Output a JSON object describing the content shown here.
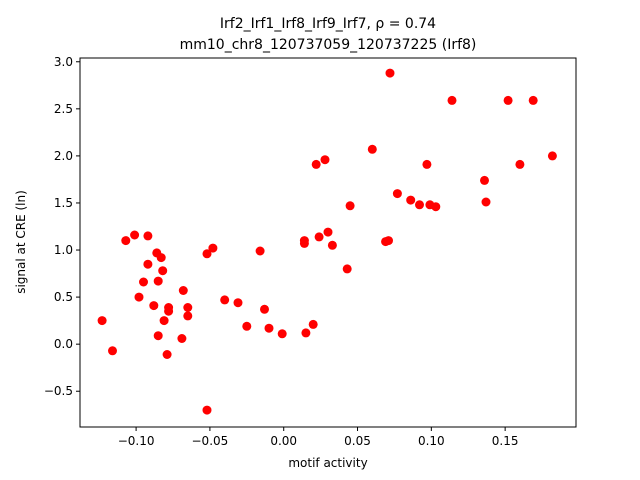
{
  "chart_data": {
    "type": "scatter",
    "title": "Irf2_Irf1_Irf8_Irf9_Irf7, ρ = 0.74",
    "subtitle": "mm10_chr8_120737059_120737225 (Irf8)",
    "xlabel": "motif activity",
    "ylabel": "signal at CRE (ln)",
    "xlim": [
      -0.138,
      0.198
    ],
    "ylim": [
      -0.88,
      3.04
    ],
    "xticks": [
      -0.1,
      -0.05,
      0.0,
      0.05,
      0.1,
      0.15
    ],
    "xtick_labels": [
      "−0.10",
      "−0.05",
      "0.00",
      "0.05",
      "0.10",
      "0.15"
    ],
    "yticks": [
      -0.5,
      0.0,
      0.5,
      1.0,
      1.5,
      2.0,
      2.5,
      3.0
    ],
    "ytick_labels": [
      "−0.5",
      "0.0",
      "0.5",
      "1.0",
      "1.5",
      "2.0",
      "2.5",
      "3.0"
    ],
    "grid": false,
    "marker_color": "#ff0000",
    "points": [
      {
        "x": -0.123,
        "y": 0.25
      },
      {
        "x": -0.116,
        "y": -0.07
      },
      {
        "x": -0.107,
        "y": 1.1
      },
      {
        "x": -0.101,
        "y": 1.16
      },
      {
        "x": -0.098,
        "y": 0.5
      },
      {
        "x": -0.095,
        "y": 0.66
      },
      {
        "x": -0.092,
        "y": 1.15
      },
      {
        "x": -0.092,
        "y": 0.85
      },
      {
        "x": -0.088,
        "y": 0.41
      },
      {
        "x": -0.086,
        "y": 0.97
      },
      {
        "x": -0.085,
        "y": 0.67
      },
      {
        "x": -0.085,
        "y": 0.09
      },
      {
        "x": -0.083,
        "y": 0.92
      },
      {
        "x": -0.082,
        "y": 0.78
      },
      {
        "x": -0.081,
        "y": 0.25
      },
      {
        "x": -0.079,
        "y": -0.11
      },
      {
        "x": -0.078,
        "y": 0.35
      },
      {
        "x": -0.078,
        "y": 0.39
      },
      {
        "x": -0.069,
        "y": 0.06
      },
      {
        "x": -0.068,
        "y": 0.57
      },
      {
        "x": -0.065,
        "y": 0.39
      },
      {
        "x": -0.065,
        "y": 0.3
      },
      {
        "x": -0.052,
        "y": 0.96
      },
      {
        "x": -0.052,
        "y": -0.7
      },
      {
        "x": -0.048,
        "y": 1.02
      },
      {
        "x": -0.04,
        "y": 0.47
      },
      {
        "x": -0.031,
        "y": 0.44
      },
      {
        "x": -0.025,
        "y": 0.19
      },
      {
        "x": -0.016,
        "y": 0.99
      },
      {
        "x": -0.013,
        "y": 0.37
      },
      {
        "x": -0.01,
        "y": 0.17
      },
      {
        "x": -0.001,
        "y": 0.11
      },
      {
        "x": 0.014,
        "y": 1.07
      },
      {
        "x": 0.014,
        "y": 1.1
      },
      {
        "x": 0.015,
        "y": 0.12
      },
      {
        "x": 0.02,
        "y": 0.21
      },
      {
        "x": 0.022,
        "y": 1.91
      },
      {
        "x": 0.024,
        "y": 1.14
      },
      {
        "x": 0.028,
        "y": 1.96
      },
      {
        "x": 0.03,
        "y": 1.19
      },
      {
        "x": 0.033,
        "y": 1.05
      },
      {
        "x": 0.043,
        "y": 0.8
      },
      {
        "x": 0.045,
        "y": 1.47
      },
      {
        "x": 0.06,
        "y": 2.07
      },
      {
        "x": 0.069,
        "y": 1.09
      },
      {
        "x": 0.071,
        "y": 1.1
      },
      {
        "x": 0.072,
        "y": 2.88
      },
      {
        "x": 0.077,
        "y": 1.6
      },
      {
        "x": 0.086,
        "y": 1.53
      },
      {
        "x": 0.092,
        "y": 1.48
      },
      {
        "x": 0.097,
        "y": 1.91
      },
      {
        "x": 0.099,
        "y": 1.48
      },
      {
        "x": 0.103,
        "y": 1.46
      },
      {
        "x": 0.114,
        "y": 2.59
      },
      {
        "x": 0.136,
        "y": 1.74
      },
      {
        "x": 0.137,
        "y": 1.51
      },
      {
        "x": 0.152,
        "y": 2.59
      },
      {
        "x": 0.16,
        "y": 1.91
      },
      {
        "x": 0.169,
        "y": 2.59
      },
      {
        "x": 0.182,
        "y": 2.0
      }
    ]
  }
}
